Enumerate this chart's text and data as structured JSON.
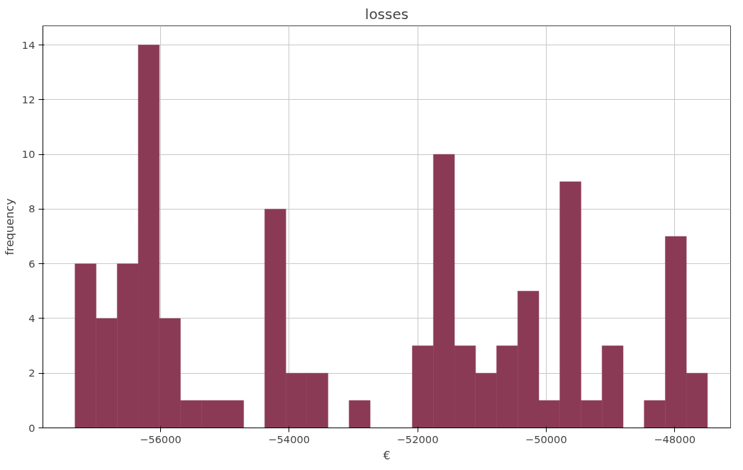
{
  "chart_data": {
    "type": "histogram",
    "title": "losses",
    "xlabel": "€",
    "ylabel": "frequency",
    "bins": [
      -57330,
      -57002,
      -56674,
      -56346,
      -56018,
      -55690,
      -55362,
      -55034,
      -54706,
      -54378,
      -54050,
      -53722,
      -53394,
      -53066,
      -52738,
      -52410,
      -52082,
      -51754,
      -51426,
      -51098,
      -50770,
      -50442,
      -50114,
      -49786,
      -49458,
      -49130,
      -48802,
      -48474,
      -48146,
      -47818,
      -47490
    ],
    "values": [
      6,
      4,
      6,
      14,
      4,
      1,
      1,
      1,
      0,
      8,
      2,
      2,
      0,
      1,
      0,
      0,
      3,
      10,
      3,
      2,
      3,
      5,
      1,
      9,
      1,
      3,
      0,
      1,
      7,
      2
    ],
    "color": "#8b3a56",
    "xlim": [
      -57830,
      -47130
    ],
    "ylim": [
      0,
      14.7
    ],
    "xticks": [
      {
        "value": -56000,
        "label": "−56000"
      },
      {
        "value": -54000,
        "label": "−54000"
      },
      {
        "value": -52000,
        "label": "−52000"
      },
      {
        "value": -50000,
        "label": "−50000"
      },
      {
        "value": -48000,
        "label": "−48000"
      }
    ],
    "yticks": [
      0,
      2,
      4,
      6,
      8,
      10,
      12,
      14
    ],
    "grid": true
  }
}
